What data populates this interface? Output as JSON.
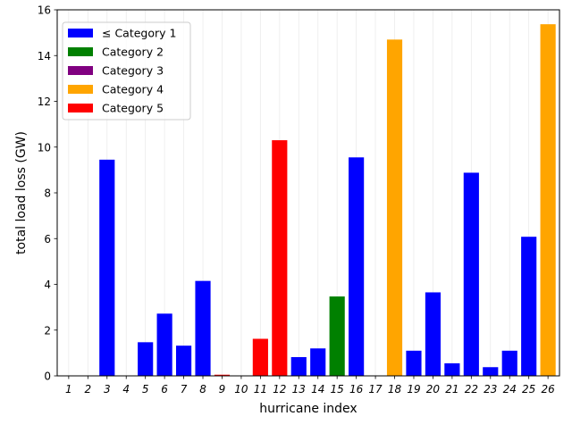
{
  "chart_data": {
    "type": "bar",
    "xlabel": "hurricane index",
    "ylabel": "total load loss (GW)",
    "ylim": [
      0,
      16
    ],
    "yticks": [
      0,
      2,
      4,
      6,
      8,
      10,
      12,
      14,
      16
    ],
    "grid": "vertical",
    "legend_placement": "top-left",
    "categories": [
      "1",
      "2",
      "3",
      "4",
      "5",
      "6",
      "7",
      "8",
      "9",
      "10",
      "11",
      "12",
      "13",
      "14",
      "15",
      "16",
      "17",
      "18",
      "19",
      "20",
      "21",
      "22",
      "23",
      "24",
      "25",
      "26"
    ],
    "values": [
      0,
      0,
      9.45,
      0,
      1.47,
      2.72,
      1.32,
      4.15,
      0.05,
      0,
      1.62,
      10.3,
      0.82,
      1.2,
      3.47,
      9.55,
      0,
      14.7,
      1.1,
      3.65,
      0.55,
      8.88,
      0.38,
      1.1,
      6.08,
      15.37
    ],
    "bar_category": [
      1,
      1,
      1,
      1,
      1,
      1,
      1,
      1,
      5,
      1,
      5,
      5,
      1,
      1,
      2,
      1,
      1,
      4,
      1,
      1,
      1,
      1,
      1,
      1,
      1,
      4
    ],
    "legend": [
      {
        "label": "≤ Category 1",
        "color": "#0000ff"
      },
      {
        "label": "Category 2",
        "color": "#008000"
      },
      {
        "label": "Category 3",
        "color": "#800080"
      },
      {
        "label": "Category 4",
        "color": "#ffa500"
      },
      {
        "label": "Category 5",
        "color": "#ff0000"
      }
    ],
    "category_colors": {
      "1": "#0000ff",
      "2": "#008000",
      "3": "#800080",
      "4": "#ffa500",
      "5": "#ff0000"
    }
  }
}
